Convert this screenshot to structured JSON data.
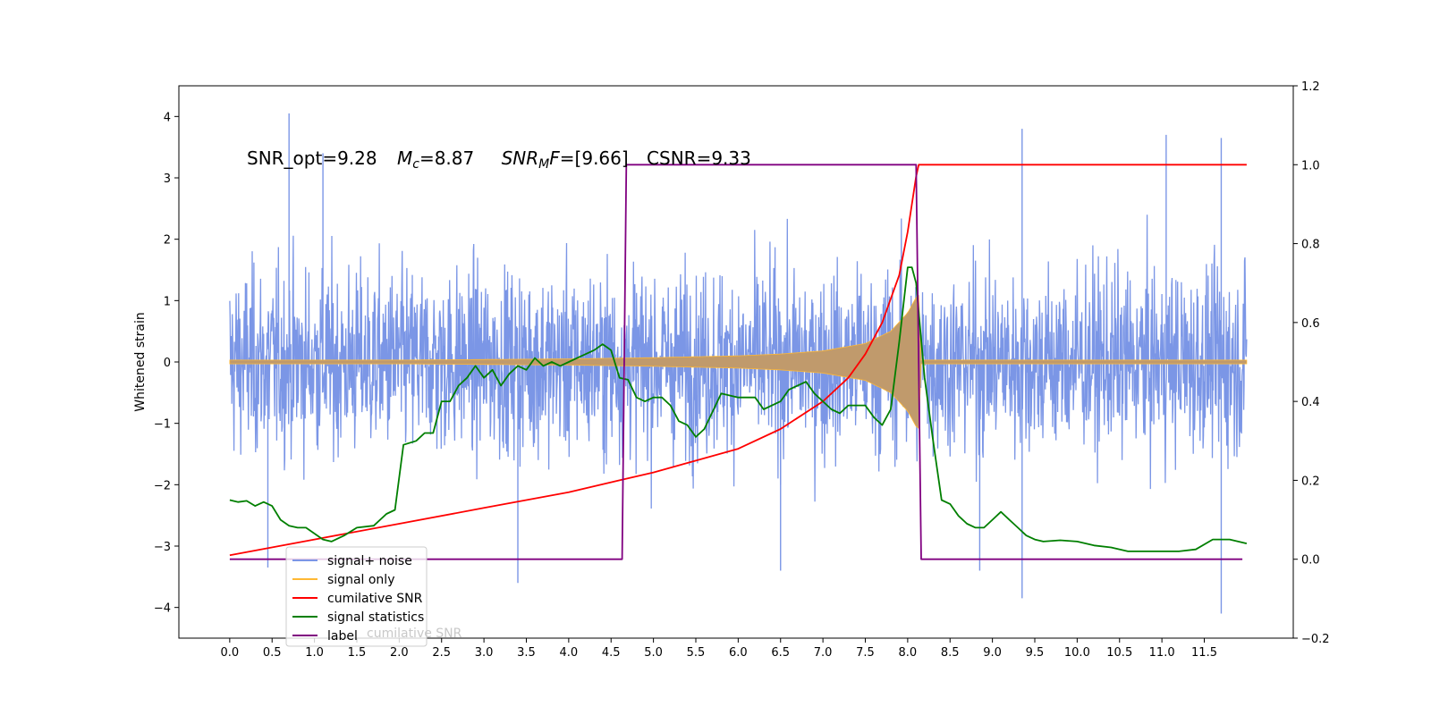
{
  "chart_data": {
    "type": "line",
    "annotation": {
      "snr_opt": "SNR_opt=9.28",
      "mc_symbol": "M",
      "mc_sub": "c",
      "mc_value": "=8.87",
      "snrmf_symbol": "SNR",
      "snrmf_sub": "M",
      "snrmf_rest": "F",
      "snrmf_value": "=[9.66]",
      "csnr": "CSNR=9.33"
    },
    "ylabel": "Whitened strain",
    "xlim": [
      -0.6,
      12.55
    ],
    "ylim_left": [
      -4.5,
      4.5
    ],
    "ylim_right": [
      -0.2,
      1.2
    ],
    "x_ticks": [
      "0.0",
      "0.5",
      "1.0",
      "1.5",
      "2.0",
      "2.5",
      "3.0",
      "3.5",
      "4.0",
      "4.5",
      "5.0",
      "5.5",
      "6.0",
      "6.5",
      "7.0",
      "7.5",
      "8.0",
      "8.5",
      "9.0",
      "9.5",
      "10.0",
      "10.5",
      "11.0",
      "11.5"
    ],
    "y_ticks_left": [
      "4",
      "3",
      "2",
      "1",
      "0",
      "−1",
      "−2",
      "−3",
      "−4"
    ],
    "y_ticks_right": [
      "1.2",
      "1.0",
      "0.8",
      "0.6",
      "0.4",
      "0.2",
      "0.0",
      "−0.2"
    ],
    "colors": {
      "signal_noise": "#7b96e6",
      "signal_only_line": "#ffb833",
      "signal_only_fill": "#c09a6c",
      "cumulative": "#ff0000",
      "statistics": "#007f00",
      "label": "#800080"
    },
    "legend": {
      "placement": "lower-left",
      "entries": [
        "signal+ noise",
        "signal only",
        "cumilative SNR",
        "signal statistics",
        "label"
      ],
      "occluded_text": "cumilative SNR"
    },
    "series": [
      {
        "name": "signal+ noise",
        "axis": "left",
        "x_range": [
          0.0,
          12.0
        ],
        "typical_envelope": [
          -2.2,
          2.2
        ],
        "notable_peaks": [
          [
            0.7,
            4.05
          ],
          [
            1.1,
            3.4
          ],
          [
            9.35,
            3.8
          ],
          [
            11.05,
            3.7
          ],
          [
            11.7,
            3.65
          ],
          [
            3.4,
            -3.6
          ],
          [
            9.35,
            -3.85
          ],
          [
            11.7,
            -4.1
          ],
          [
            6.5,
            -3.4
          ],
          [
            8.85,
            -3.4
          ],
          [
            0.45,
            -3.35
          ]
        ]
      },
      {
        "name": "signal only",
        "axis": "left",
        "x_range": [
          0.0,
          12.0
        ],
        "chirp_end": 8.15,
        "envelope": [
          [
            0.0,
            0.03
          ],
          [
            1.0,
            0.03
          ],
          [
            2.0,
            0.03
          ],
          [
            3.0,
            0.04
          ],
          [
            4.0,
            0.05
          ],
          [
            5.0,
            0.07
          ],
          [
            6.0,
            0.1
          ],
          [
            6.5,
            0.13
          ],
          [
            7.0,
            0.18
          ],
          [
            7.5,
            0.3
          ],
          [
            7.8,
            0.5
          ],
          [
            8.0,
            0.8
          ],
          [
            8.1,
            1.05
          ],
          [
            8.15,
            1.1
          ]
        ]
      },
      {
        "name": "cumilative SNR",
        "axis": "right",
        "points": [
          [
            0.0,
            0.01
          ],
          [
            1.0,
            0.05
          ],
          [
            2.0,
            0.09
          ],
          [
            3.0,
            0.13
          ],
          [
            4.0,
            0.17
          ],
          [
            4.6,
            0.2
          ],
          [
            5.0,
            0.22
          ],
          [
            5.5,
            0.25
          ],
          [
            6.0,
            0.28
          ],
          [
            6.5,
            0.33
          ],
          [
            7.0,
            0.4
          ],
          [
            7.3,
            0.46
          ],
          [
            7.5,
            0.52
          ],
          [
            7.7,
            0.6
          ],
          [
            7.9,
            0.72
          ],
          [
            8.0,
            0.83
          ],
          [
            8.05,
            0.9
          ],
          [
            8.1,
            0.97
          ],
          [
            8.13,
            1.0
          ],
          [
            12.0,
            1.0
          ]
        ]
      },
      {
        "name": "signal statistics",
        "axis": "right",
        "points": [
          [
            0.0,
            0.15
          ],
          [
            0.1,
            0.145
          ],
          [
            0.2,
            0.148
          ],
          [
            0.3,
            0.135
          ],
          [
            0.4,
            0.145
          ],
          [
            0.5,
            0.135
          ],
          [
            0.6,
            0.1
          ],
          [
            0.7,
            0.085
          ],
          [
            0.8,
            0.08
          ],
          [
            0.9,
            0.08
          ],
          [
            1.0,
            0.065
          ],
          [
            1.1,
            0.05
          ],
          [
            1.2,
            0.045
          ],
          [
            1.35,
            0.06
          ],
          [
            1.5,
            0.08
          ],
          [
            1.7,
            0.085
          ],
          [
            1.85,
            0.115
          ],
          [
            1.95,
            0.125
          ],
          [
            2.05,
            0.29
          ],
          [
            2.2,
            0.3
          ],
          [
            2.3,
            0.32
          ],
          [
            2.4,
            0.32
          ],
          [
            2.5,
            0.4
          ],
          [
            2.6,
            0.4
          ],
          [
            2.7,
            0.44
          ],
          [
            2.8,
            0.46
          ],
          [
            2.9,
            0.49
          ],
          [
            3.0,
            0.46
          ],
          [
            3.1,
            0.48
          ],
          [
            3.2,
            0.44
          ],
          [
            3.3,
            0.47
          ],
          [
            3.4,
            0.49
          ],
          [
            3.5,
            0.48
          ],
          [
            3.6,
            0.51
          ],
          [
            3.7,
            0.49
          ],
          [
            3.8,
            0.5
          ],
          [
            3.9,
            0.49
          ],
          [
            4.0,
            0.5
          ],
          [
            4.1,
            0.51
          ],
          [
            4.2,
            0.52
          ],
          [
            4.3,
            0.53
          ],
          [
            4.4,
            0.545
          ],
          [
            4.5,
            0.53
          ],
          [
            4.6,
            0.46
          ],
          [
            4.7,
            0.455
          ],
          [
            4.8,
            0.41
          ],
          [
            4.9,
            0.4
          ],
          [
            5.0,
            0.41
          ],
          [
            5.1,
            0.41
          ],
          [
            5.2,
            0.39
          ],
          [
            5.3,
            0.35
          ],
          [
            5.4,
            0.34
          ],
          [
            5.5,
            0.31
          ],
          [
            5.6,
            0.33
          ],
          [
            5.8,
            0.42
          ],
          [
            6.0,
            0.41
          ],
          [
            6.2,
            0.41
          ],
          [
            6.3,
            0.38
          ],
          [
            6.5,
            0.4
          ],
          [
            6.6,
            0.43
          ],
          [
            6.8,
            0.45
          ],
          [
            6.9,
            0.42
          ],
          [
            7.0,
            0.4
          ],
          [
            7.1,
            0.38
          ],
          [
            7.2,
            0.37
          ],
          [
            7.3,
            0.39
          ],
          [
            7.5,
            0.39
          ],
          [
            7.6,
            0.36
          ],
          [
            7.7,
            0.34
          ],
          [
            7.8,
            0.38
          ],
          [
            7.9,
            0.55
          ],
          [
            8.0,
            0.74
          ],
          [
            8.05,
            0.74
          ],
          [
            8.1,
            0.7
          ],
          [
            8.2,
            0.46
          ],
          [
            8.3,
            0.3
          ],
          [
            8.4,
            0.15
          ],
          [
            8.5,
            0.14
          ],
          [
            8.6,
            0.11
          ],
          [
            8.7,
            0.09
          ],
          [
            8.8,
            0.08
          ],
          [
            8.9,
            0.08
          ],
          [
            9.0,
            0.1
          ],
          [
            9.1,
            0.12
          ],
          [
            9.2,
            0.1
          ],
          [
            9.3,
            0.08
          ],
          [
            9.4,
            0.06
          ],
          [
            9.5,
            0.05
          ],
          [
            9.6,
            0.045
          ],
          [
            9.8,
            0.048
          ],
          [
            10.0,
            0.045
          ],
          [
            10.2,
            0.035
          ],
          [
            10.4,
            0.03
          ],
          [
            10.6,
            0.02
          ],
          [
            10.8,
            0.02
          ],
          [
            11.0,
            0.02
          ],
          [
            11.2,
            0.02
          ],
          [
            11.4,
            0.025
          ],
          [
            11.6,
            0.05
          ],
          [
            11.8,
            0.05
          ],
          [
            12.0,
            0.04
          ]
        ]
      },
      {
        "name": "label",
        "axis": "right",
        "points": [
          [
            0.0,
            0.0
          ],
          [
            4.63,
            0.0
          ],
          [
            4.68,
            1.0
          ],
          [
            8.1,
            1.0
          ],
          [
            8.16,
            0.0
          ],
          [
            11.95,
            0.0
          ]
        ]
      }
    ]
  }
}
